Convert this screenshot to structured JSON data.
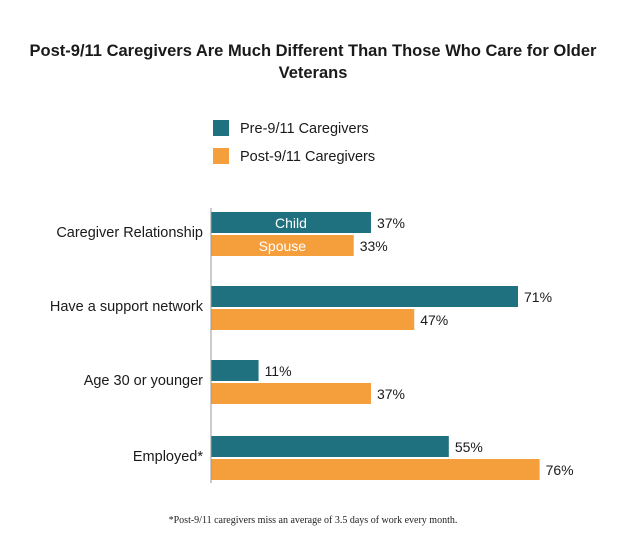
{
  "chart_data": {
    "type": "bar",
    "orientation": "horizontal",
    "title": "Post-9/11 Caregivers Are Much Different Than Those Who Care for Older Veterans",
    "categories": [
      "Caregiver Relationship",
      "Have a support network",
      "Age 30 or younger",
      "Employed*"
    ],
    "series": [
      {
        "name": "Pre-9/11 Caregivers",
        "color": "#1f7180",
        "values": [
          37,
          71,
          11,
          55
        ],
        "value_labels": [
          "37%",
          "71%",
          "11%",
          "55%"
        ]
      },
      {
        "name": "Post-9/11 Caregivers",
        "color": "#f59e3c",
        "values": [
          33,
          47,
          37,
          76
        ],
        "value_labels": [
          "33%",
          "47%",
          "37%",
          "76%"
        ]
      }
    ],
    "inner_labels": {
      "0": [
        "Child",
        "Spouse"
      ]
    },
    "xlim": [
      0,
      100
    ],
    "legend": "top-center",
    "grid": false,
    "footnote": "*Post-9/11 caregivers miss an average of 3.5 days of work every month."
  }
}
